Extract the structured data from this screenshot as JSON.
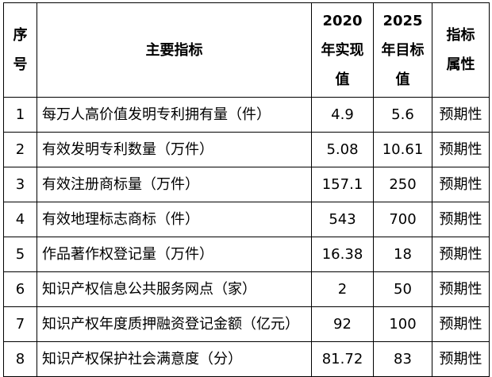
{
  "table": {
    "headers": {
      "index": [
        "序",
        "号"
      ],
      "indicator": "主要指标",
      "value_2020": [
        "2020",
        "年实现",
        "值"
      ],
      "value_2025": [
        "2025",
        "年目标",
        "值"
      ],
      "attribute": [
        "指标",
        "属性"
      ]
    },
    "rows": [
      {
        "index": "1",
        "indicator": "每万人高价值发明专利拥有量（件）",
        "value_2020": "4.9",
        "value_2025": "5.6",
        "attribute": "预期性"
      },
      {
        "index": "2",
        "indicator": "有效发明专利数量（万件）",
        "value_2020": "5.08",
        "value_2025": "10.61",
        "attribute": "预期性"
      },
      {
        "index": "3",
        "indicator": "有效注册商标量（万件）",
        "value_2020": "157.1",
        "value_2025": "250",
        "attribute": "预期性"
      },
      {
        "index": "4",
        "indicator": "有效地理标志商标（件）",
        "value_2020": "543",
        "value_2025": "700",
        "attribute": "预期性"
      },
      {
        "index": "5",
        "indicator": "作品著作权登记量（万件）",
        "value_2020": "16.38",
        "value_2025": "18",
        "attribute": "预期性"
      },
      {
        "index": "6",
        "indicator": "知识产权信息公共服务网点（家）",
        "value_2020": "2",
        "value_2025": "50",
        "attribute": "预期性"
      },
      {
        "index": "7",
        "indicator": "知识产权年度质押融资登记金额（亿元）",
        "value_2020": "92",
        "value_2025": "100",
        "attribute": "预期性"
      },
      {
        "index": "8",
        "indicator": "知识产权保护社会满意度（分）",
        "value_2020": "81.72",
        "value_2025": "83",
        "attribute": "预期性"
      }
    ]
  }
}
